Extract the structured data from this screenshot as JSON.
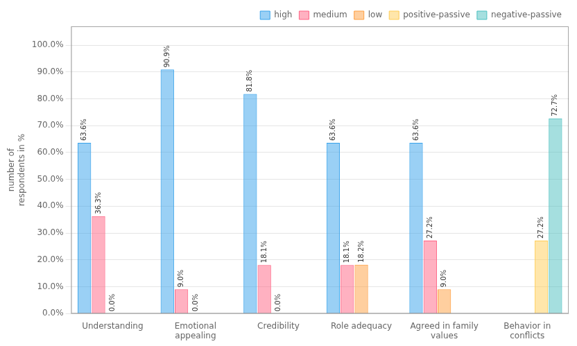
{
  "chart_data": {
    "type": "bar",
    "ylabel": "number of\nrespondents in %",
    "categories": [
      "Understanding",
      "Emotional\nappealing",
      "Credibility",
      "Role adequacy",
      "Agreed in family\nvalues",
      "Behavior in\nconflicts"
    ],
    "series": [
      {
        "name": "high",
        "values": [
          63.6,
          90.9,
          81.8,
          63.6,
          63.6,
          0.0
        ],
        "value_labels": [
          "63.6%",
          "90.9%",
          "81.8%",
          "63.6%",
          "63.6%",
          null
        ]
      },
      {
        "name": "medium",
        "values": [
          36.3,
          9.0,
          18.1,
          18.1,
          27.2,
          0.0
        ],
        "value_labels": [
          "36.3%",
          "9.0%",
          "18.1%",
          "18.1%",
          "27.2%",
          null
        ]
      },
      {
        "name": "low",
        "values": [
          0.0,
          0.0,
          0.0,
          18.2,
          9.0,
          0.0
        ],
        "value_labels": [
          "0.0%",
          "0.0%",
          "0.0%",
          "18.2%",
          "9.0%",
          null
        ]
      },
      {
        "name": "positive-passive",
        "values": [
          0.0,
          0.0,
          0.0,
          0.0,
          0.0,
          27.2
        ],
        "value_labels": [
          null,
          null,
          null,
          null,
          null,
          "27.2%"
        ]
      },
      {
        "name": "negative-passive",
        "values": [
          0.0,
          0.0,
          0.0,
          0.0,
          0.0,
          72.7
        ],
        "value_labels": [
          null,
          null,
          null,
          null,
          null,
          "72.7%"
        ]
      }
    ],
    "ylim": [
      0,
      107
    ],
    "yticks": [
      {
        "value": 0,
        "label": "0.0%"
      },
      {
        "value": 10,
        "label": "10.0%"
      },
      {
        "value": 20,
        "label": "20.0%"
      },
      {
        "value": 30,
        "label": "30.0%"
      },
      {
        "value": 40,
        "label": "40.0%"
      },
      {
        "value": 50,
        "label": "50.0%"
      },
      {
        "value": 60,
        "label": "60.0%"
      },
      {
        "value": 70,
        "label": "70.0%"
      },
      {
        "value": 80,
        "label": "80.0%"
      },
      {
        "value": 90,
        "label": "90.0%"
      },
      {
        "value": 100,
        "label": "100.0%"
      }
    ],
    "grid": true,
    "legend": "upper right",
    "data_labels": true
  }
}
